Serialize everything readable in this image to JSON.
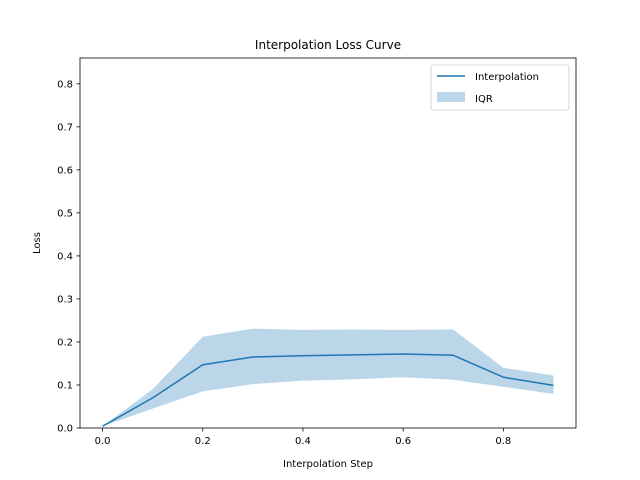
{
  "chart_data": {
    "type": "line",
    "title": "Interpolation Loss Curve",
    "xlabel": "Interpolation Step",
    "ylabel": "Loss",
    "xlim": [
      -0.045,
      0.945
    ],
    "ylim": [
      0.0,
      0.86
    ],
    "xticks": [
      0.0,
      0.2,
      0.4,
      0.6,
      0.8
    ],
    "xtick_labels": [
      "0.0",
      "0.2",
      "0.4",
      "0.6",
      "0.8"
    ],
    "yticks": [
      0.0,
      0.1,
      0.2,
      0.3,
      0.4,
      0.5,
      0.6,
      0.7,
      0.8
    ],
    "ytick_labels": [
      "0.0",
      "0.1",
      "0.2",
      "0.3",
      "0.4",
      "0.5",
      "0.6",
      "0.7",
      "0.8"
    ],
    "grid": false,
    "legend_position": "top-right",
    "x": [
      0.0,
      0.1,
      0.2,
      0.3,
      0.4,
      0.5,
      0.6,
      0.7,
      0.8,
      0.9
    ],
    "series": [
      {
        "name": "Interpolation",
        "type": "line",
        "color": "#1f77b4",
        "values": [
          0.004,
          0.07,
          0.147,
          0.165,
          0.168,
          0.17,
          0.172,
          0.169,
          0.118,
          0.099
        ]
      },
      {
        "name": "IQR",
        "type": "band",
        "color": "#1f77b4",
        "opacity": 0.3,
        "lower": [
          0.004,
          0.045,
          0.085,
          0.102,
          0.11,
          0.113,
          0.118,
          0.112,
          0.096,
          0.079
        ],
        "upper": [
          0.004,
          0.09,
          0.212,
          0.231,
          0.228,
          0.229,
          0.228,
          0.229,
          0.14,
          0.122
        ]
      }
    ]
  }
}
